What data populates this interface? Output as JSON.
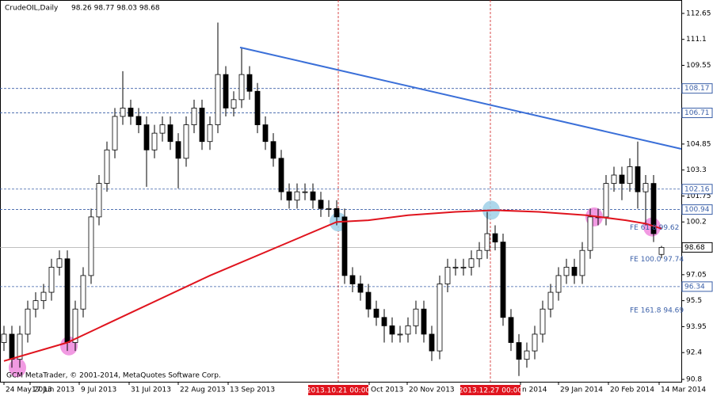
{
  "chart_data": {
    "type": "candlestick",
    "title": "CrudeOIL,Daily",
    "ohlc_header": "98.26 98.77 98.03 98.68",
    "footer": "GCM MetaTrader, © 2001-2014, MetaQuotes Software Corp.",
    "xlim": [
      -0.5,
      85.5
    ],
    "ylim": [
      90.66,
      113.45
    ],
    "yticks": [
      112.65,
      111.1,
      109.55,
      104.85,
      103.3,
      101.75,
      100.2,
      97.05,
      95.5,
      93.95,
      92.4,
      90.8
    ],
    "xticks": [
      {
        "value": 0,
        "label": "24 May 2013"
      },
      {
        "value": 3.3,
        "label": "17 Jun 2013"
      },
      {
        "value": 9.5,
        "label": "9 Jul 2013"
      },
      {
        "value": 15.8,
        "label": "31 Jul 2013"
      },
      {
        "value": 22,
        "label": "22 Aug 2013"
      },
      {
        "value": 28.3,
        "label": "13 Sep 2013"
      },
      {
        "value": 46.1,
        "label": "Oct 2013"
      },
      {
        "value": 50.9,
        "label": "20 Nov 2013"
      },
      {
        "value": 65.2,
        "label": "n 2014"
      },
      {
        "value": 70,
        "label": "29 Jan 2014"
      },
      {
        "value": 76.3,
        "label": "20 Feb 2014"
      },
      {
        "value": 82.7,
        "label": "14 Mar 2014"
      }
    ],
    "open": [
      93.0,
      93.5,
      92.0,
      93.5,
      95.0,
      95.5,
      96.0,
      97.5,
      98.0,
      93.0,
      95.0,
      97.0,
      100.5,
      102.5,
      104.5,
      106.5,
      107.0,
      106.5,
      106.0,
      104.5,
      105.5,
      106.0,
      105.0,
      104.0,
      106.0,
      107.0,
      105.0,
      106.0,
      109.0,
      107.0,
      107.5,
      109.0,
      108.0,
      106.0,
      105.0,
      104.0,
      102.0,
      101.5,
      102.0,
      102.0,
      101.5,
      101.0,
      101.0,
      100.5,
      97.0,
      96.5,
      96.0,
      95.0,
      94.5,
      94.0,
      93.5,
      93.5,
      94.0,
      95.0,
      93.5,
      92.5,
      96.5,
      97.5,
      97.5,
      97.5,
      98.0,
      98.5,
      99.5,
      99.0,
      94.5,
      93.0,
      92.0,
      92.5,
      93.5,
      95.0,
      96.0,
      97.0,
      97.5,
      97.0,
      98.5,
      100.5,
      100.5,
      102.5,
      103.0,
      102.5,
      103.5,
      102.0,
      102.5,
      98.26
    ],
    "high": [
      94.0,
      94.0,
      94.0,
      95.5,
      96.0,
      96.5,
      98.0,
      98.5,
      98.5,
      95.5,
      97.5,
      101.0,
      103.0,
      105.0,
      107.0,
      109.2,
      107.5,
      107.0,
      106.5,
      106.0,
      106.5,
      106.5,
      105.5,
      106.5,
      107.5,
      107.5,
      106.5,
      112.1,
      109.5,
      108.0,
      110.6,
      109.5,
      108.5,
      106.5,
      105.5,
      104.5,
      102.5,
      102.5,
      102.5,
      102.5,
      102.0,
      101.5,
      101.5,
      101.0,
      97.5,
      97.0,
      96.5,
      95.5,
      95.0,
      94.5,
      94.0,
      94.5,
      95.5,
      95.5,
      94.0,
      97.0,
      98.0,
      98.0,
      98.0,
      98.5,
      99.0,
      100.8,
      100.0,
      99.5,
      95.0,
      93.5,
      93.0,
      94.0,
      95.5,
      96.5,
      97.5,
      98.0,
      98.0,
      99.0,
      101.0,
      101.0,
      103.0,
      103.5,
      103.5,
      104.0,
      105.0,
      103.0,
      103.0,
      98.77
    ],
    "low": [
      92.5,
      91.5,
      91.5,
      93.0,
      94.5,
      95.0,
      95.5,
      97.0,
      92.5,
      92.5,
      94.5,
      96.5,
      100.0,
      102.0,
      104.0,
      106.0,
      106.0,
      105.5,
      102.3,
      104.0,
      105.0,
      104.5,
      102.2,
      103.5,
      105.5,
      104.5,
      104.5,
      105.5,
      106.5,
      106.5,
      107.0,
      107.5,
      105.5,
      104.5,
      103.5,
      101.5,
      101.0,
      101.0,
      101.5,
      101.0,
      100.5,
      100.5,
      100.0,
      96.5,
      96.0,
      95.5,
      94.5,
      94.0,
      93.0,
      93.0,
      93.0,
      93.0,
      93.5,
      93.0,
      91.9,
      92.0,
      96.0,
      97.0,
      97.0,
      97.0,
      97.5,
      98.0,
      98.5,
      94.0,
      92.5,
      91.0,
      91.5,
      92.0,
      93.0,
      94.5,
      95.5,
      96.5,
      96.5,
      96.5,
      98.0,
      100.0,
      100.0,
      102.0,
      101.5,
      102.0,
      101.0,
      100.0,
      99.0,
      98.03
    ],
    "close": [
      93.5,
      92.0,
      93.5,
      95.0,
      95.5,
      96.0,
      97.5,
      98.0,
      93.0,
      95.0,
      97.0,
      100.5,
      102.5,
      104.5,
      106.5,
      107.0,
      106.5,
      106.0,
      104.5,
      105.5,
      106.0,
      105.0,
      104.0,
      106.0,
      107.0,
      105.0,
      106.0,
      109.0,
      107.0,
      107.5,
      109.0,
      108.0,
      106.0,
      105.0,
      104.0,
      102.0,
      101.5,
      102.0,
      102.0,
      101.5,
      101.0,
      101.0,
      100.5,
      97.0,
      96.5,
      96.0,
      95.0,
      94.5,
      94.0,
      93.5,
      93.5,
      94.0,
      95.0,
      93.5,
      92.5,
      96.5,
      97.5,
      97.5,
      97.5,
      98.0,
      98.5,
      99.5,
      99.0,
      94.5,
      93.0,
      92.0,
      92.5,
      93.5,
      95.0,
      96.0,
      97.0,
      97.5,
      97.0,
      98.5,
      100.5,
      100.5,
      102.5,
      103.0,
      102.5,
      103.5,
      102.0,
      102.5,
      99.5,
      98.68
    ],
    "moving_average": {
      "color": "#e0141e",
      "x": [
        0,
        8,
        17,
        26,
        36,
        42,
        46,
        51,
        57,
        62,
        67.5,
        73.5,
        78.5,
        81,
        83
      ],
      "values": [
        91.9,
        93.0,
        95.0,
        97.0,
        99.0,
        100.2,
        100.3,
        100.6,
        100.8,
        100.9,
        100.8,
        100.6,
        100.3,
        100.1,
        99.8
      ]
    },
    "trendline": {
      "color": "#3a6fd8",
      "x": [
        29.8,
        85.5
      ],
      "values": [
        110.62,
        104.56
      ]
    },
    "levels": [
      {
        "value": 108.17,
        "label": "108.17"
      },
      {
        "value": 106.71,
        "label": "106.71"
      },
      {
        "value": 102.16,
        "label": "102.16"
      },
      {
        "value": 100.94,
        "label": "100.94"
      },
      {
        "value": 96.34,
        "label": "96.34"
      }
    ],
    "current_price": {
      "value": 98.68,
      "label": "98.68"
    },
    "vlines": [
      {
        "x": 42.2,
        "label": "2013.10.21 00:00"
      },
      {
        "x": 61.4,
        "label": "2013.12.27 00:00"
      }
    ],
    "fib_labels": [
      {
        "value": 99.62,
        "label": "FE 61.8 99.62"
      },
      {
        "value": 97.74,
        "label": "FE 100.0 97.74"
      },
      {
        "value": 94.69,
        "label": "FE 161.8 94.69"
      }
    ],
    "markers": [
      {
        "x": 1.7,
        "value": 91.5,
        "color": "#ee88dd"
      },
      {
        "x": 8.2,
        "value": 92.8,
        "color": "#ee88dd"
      },
      {
        "x": 74.5,
        "value": 100.5,
        "color": "#ee88dd"
      },
      {
        "x": 81.8,
        "value": 99.9,
        "color": "#ee88dd"
      },
      {
        "x": 42.2,
        "value": 100.2,
        "color": "#9fd0e8"
      },
      {
        "x": 61.5,
        "value": 100.9,
        "color": "#9fd0e8"
      }
    ]
  }
}
